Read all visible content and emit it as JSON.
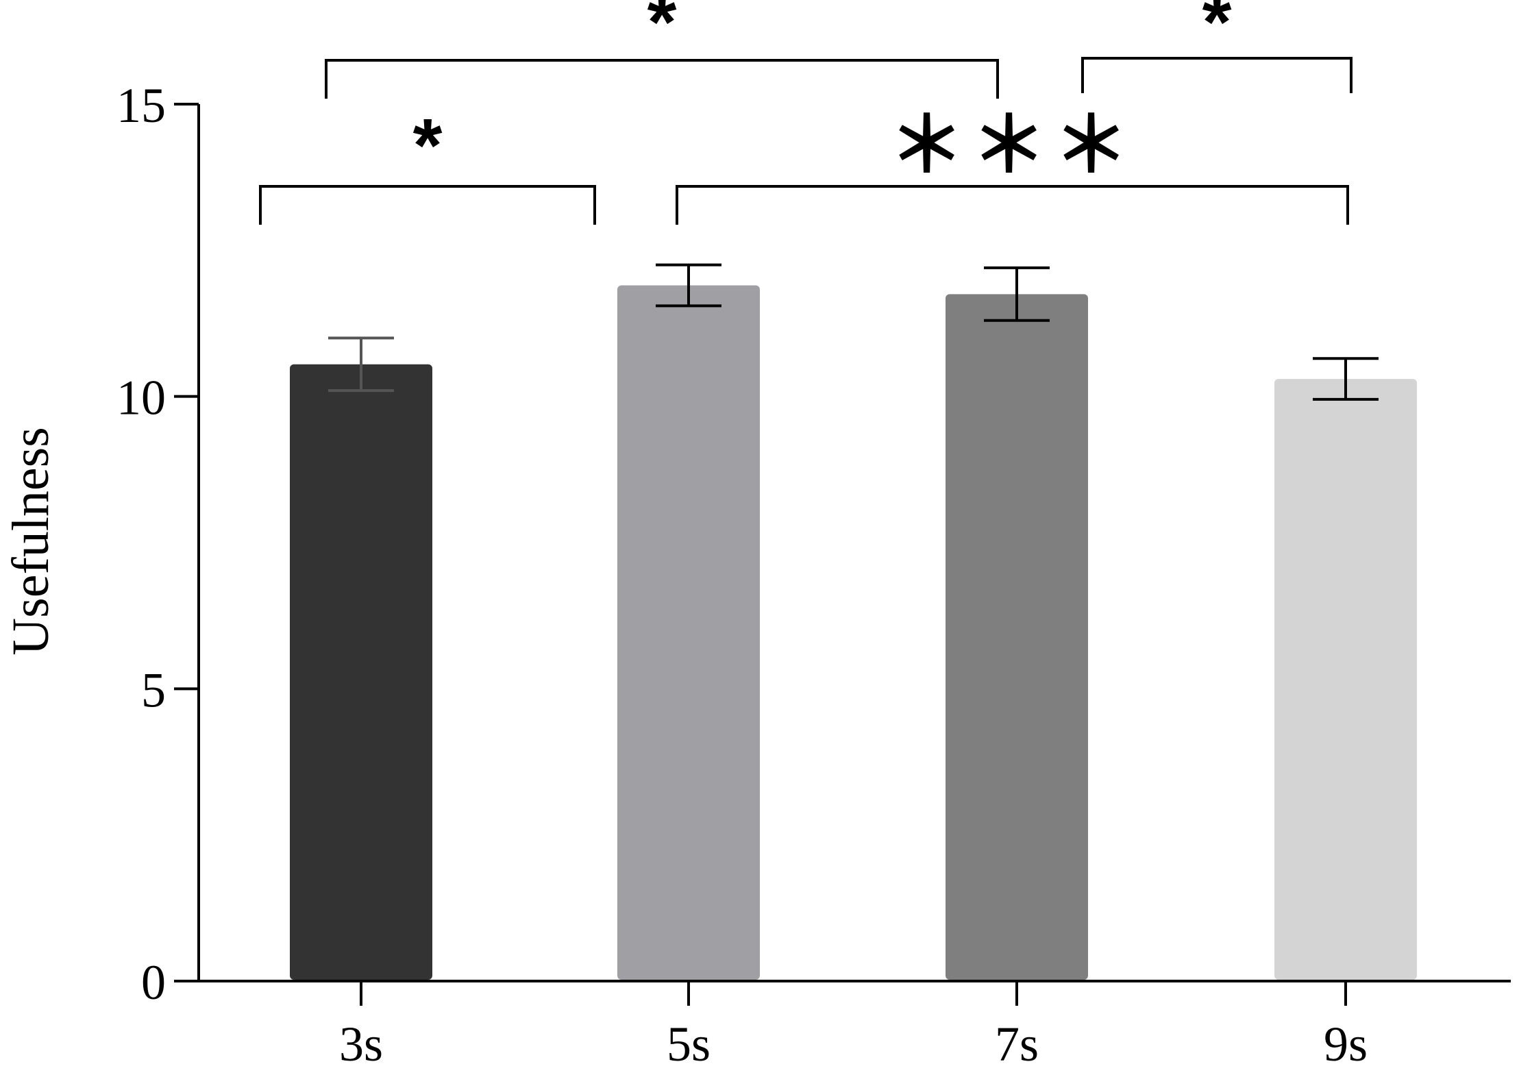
{
  "chart_data": {
    "type": "bar",
    "categories": [
      "3s",
      "5s",
      "7s",
      "9s"
    ],
    "values": [
      10.55,
      11.9,
      11.75,
      10.3
    ],
    "errors": [
      0.45,
      0.35,
      0.45,
      0.35
    ],
    "colors": [
      "#333333",
      "#a0a0a4",
      "#7f7f7f",
      "#d4d4d4"
    ],
    "errorColors": [
      "#555555",
      "#000000",
      "#000000",
      "#000000"
    ],
    "title": "",
    "xlabel": "",
    "ylabel": "Usefulness",
    "ylim": [
      0,
      15
    ],
    "yticks": [
      0,
      5,
      10,
      15
    ],
    "grid": false,
    "significance": [
      {
        "from": 0,
        "to": 1,
        "label": "*",
        "tier": "lower"
      },
      {
        "from": 1,
        "to": 3,
        "label": "＊＊＊",
        "tier": "lower"
      },
      {
        "from": 0,
        "to": 2,
        "label": "*",
        "tier": "upper"
      },
      {
        "from": 2,
        "to": 3,
        "label": "*",
        "tier": "upper"
      }
    ]
  }
}
